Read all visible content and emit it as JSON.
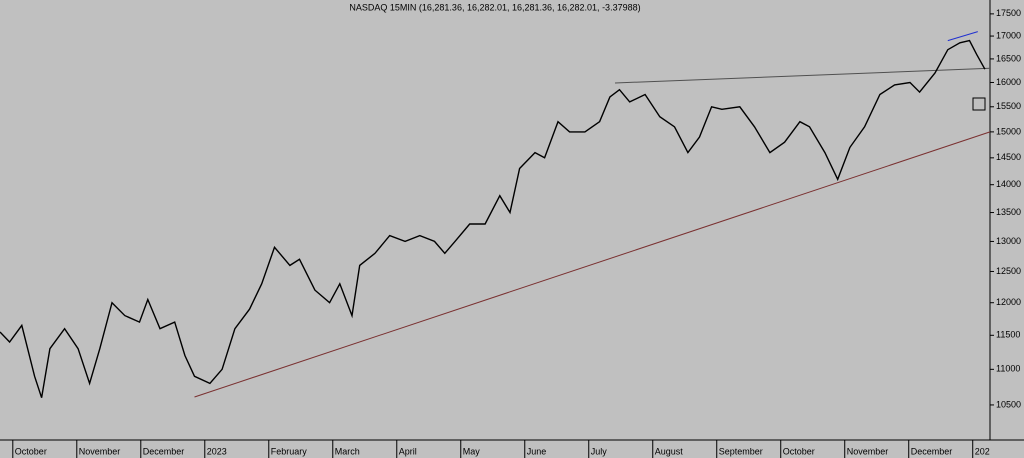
{
  "chart_data": {
    "type": "line",
    "title": "NASDAQ 15MIN (16,281.36, 16,282.01, 16,281.36, 16,282.01, -3.37988)",
    "log_scale": true,
    "xlim": [
      -0.2,
      15.27
    ],
    "xticks": [
      {
        "value": 0,
        "label": "October"
      },
      {
        "value": 1,
        "label": "November"
      },
      {
        "value": 2,
        "label": "December"
      },
      {
        "value": 3,
        "label": "2023"
      },
      {
        "value": 4,
        "label": "February"
      },
      {
        "value": 5,
        "label": "March"
      },
      {
        "value": 6,
        "label": "April"
      },
      {
        "value": 7,
        "label": "May"
      },
      {
        "value": 8,
        "label": "June"
      },
      {
        "value": 9,
        "label": "July"
      },
      {
        "value": 10,
        "label": "August"
      },
      {
        "value": 11,
        "label": "September"
      },
      {
        "value": 12,
        "label": "October"
      },
      {
        "value": 13,
        "label": "November"
      },
      {
        "value": 14,
        "label": "December"
      },
      {
        "value": 15,
        "label": "202"
      }
    ],
    "ylim": [
      10030,
      17820
    ],
    "yticks": [
      10500,
      11000,
      11500,
      12000,
      12500,
      13000,
      13500,
      14000,
      14500,
      15000,
      15500,
      16000,
      16500,
      17000,
      17500
    ],
    "x": [
      -0.2,
      -0.05,
      0.14,
      0.34,
      0.45,
      0.58,
      0.81,
      1.02,
      1.2,
      1.36,
      1.55,
      1.75,
      1.98,
      2.11,
      2.3,
      2.53,
      2.69,
      2.84,
      3.08,
      3.27,
      3.47,
      3.7,
      3.89,
      4.09,
      4.33,
      4.48,
      4.72,
      4.95,
      5.11,
      5.3,
      5.42,
      5.66,
      5.89,
      6.13,
      6.36,
      6.59,
      6.75,
      6.91,
      7.14,
      7.38,
      7.61,
      7.77,
      7.92,
      8.16,
      8.31,
      8.52,
      8.7,
      8.94,
      9.17,
      9.33,
      9.48,
      9.64,
      9.88,
      10.11,
      10.34,
      10.55,
      10.73,
      10.92,
      11.08,
      11.36,
      11.59,
      11.83,
      12.06,
      12.3,
      12.45,
      12.69,
      12.89,
      13.08,
      13.31,
      13.55,
      13.78,
      14.02,
      14.17,
      14.41,
      14.61,
      14.8,
      14.95,
      15.06,
      15.19
    ],
    "series": [
      {
        "color": "#000000",
        "values": [
          11550,
          11400,
          11650,
          10900,
          10600,
          11300,
          11600,
          11300,
          10800,
          11300,
          12000,
          11800,
          11700,
          12050,
          11600,
          11700,
          11200,
          10900,
          10800,
          11000,
          11600,
          11900,
          12300,
          12900,
          12600,
          12700,
          12200,
          12000,
          12300,
          11800,
          12600,
          12800,
          13100,
          13000,
          13100,
          13000,
          12800,
          13000,
          13300,
          13300,
          13800,
          13500,
          14300,
          14600,
          14500,
          15200,
          15000,
          15000,
          15200,
          15700,
          15850,
          15600,
          15750,
          15300,
          15100,
          14600,
          14900,
          15500,
          15450,
          15500,
          15100,
          14600,
          14800,
          15200,
          15100,
          14600,
          14100,
          14700,
          15100,
          15750,
          15950,
          16000,
          15800,
          16200,
          16700,
          16850,
          16900,
          16600,
          16280
        ]
      }
    ],
    "trend_lines": [
      {
        "color": "#7a3030",
        "x": [
          2.84,
          15.27
        ],
        "values": [
          10610,
          15000
        ]
      },
      {
        "color": "#505050",
        "x": [
          9.41,
          15.27
        ],
        "values": [
          15990,
          16300
        ]
      },
      {
        "color": "#2030d0",
        "x": [
          14.61,
          15.08
        ],
        "values": [
          16900,
          17100
        ]
      }
    ]
  }
}
